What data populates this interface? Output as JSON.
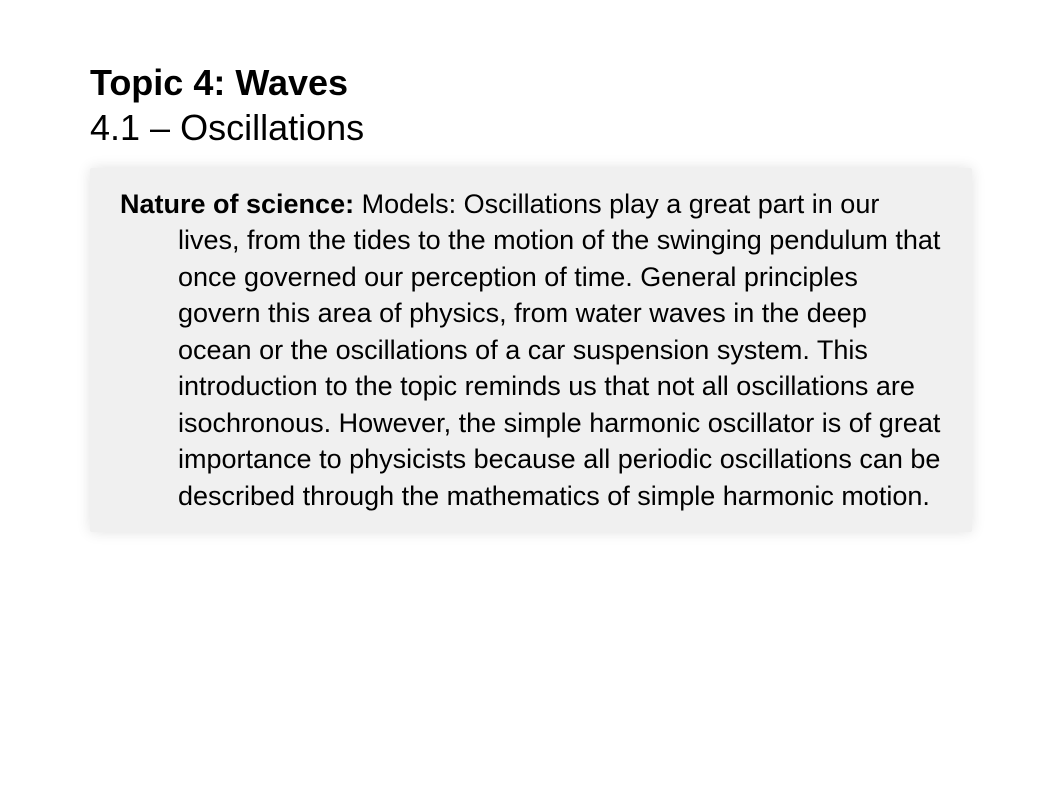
{
  "header": {
    "topic_title": "Topic 4: Waves",
    "subtitle": "4.1 – Oscillations"
  },
  "content": {
    "lead_label": "Nature of science:",
    "body": " Models: Oscillations play a great part in our lives, from the tides to the motion of the swinging pendulum that once governed our perception of time. General principles govern this area of physics, from water waves in the deep ocean or the oscillations of a car suspension system. This introduction to the topic reminds us that not all oscillations are isochronous. However, the simple harmonic oscillator is of great importance to physicists because all periodic oscillations can be described through the mathematics of simple harmonic motion."
  },
  "colors": {
    "background": "#ffffff",
    "content_box_bg": "#f0f0f0",
    "text": "#000000"
  },
  "typography": {
    "title_fontsize": 36,
    "body_fontsize": 27,
    "font_family": "Arial"
  }
}
